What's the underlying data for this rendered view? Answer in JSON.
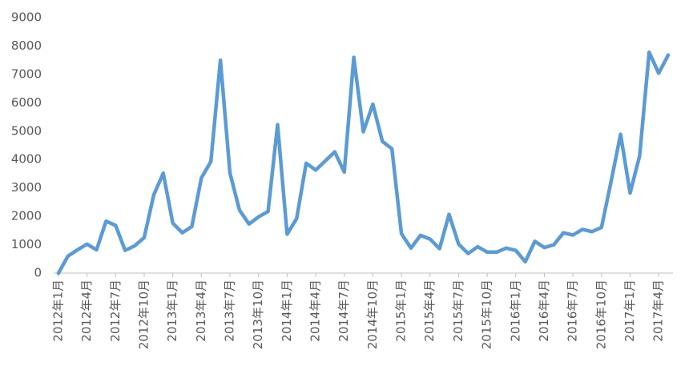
{
  "chart_data": {
    "type": "line",
    "color": "#5b9bd5",
    "categories": [
      "2012年1月",
      null,
      null,
      "2012年4月",
      null,
      null,
      "2012年7月",
      null,
      null,
      "2012年10月",
      null,
      null,
      "2013年1月",
      null,
      null,
      "2013年4月",
      null,
      null,
      "2013年7月",
      null,
      null,
      "2013年10月",
      null,
      null,
      "2014年1月",
      null,
      null,
      "2014年4月",
      null,
      null,
      "2014年7月",
      null,
      null,
      "2014年10月",
      null,
      null,
      "2015年1月",
      null,
      null,
      "2015年4月",
      null,
      null,
      "2015年7月",
      null,
      null,
      "2015年10月",
      null,
      null,
      "2016年1月",
      null,
      null,
      "2016年4月",
      null,
      null,
      "2016年7月",
      null,
      null,
      "2016年10月",
      null,
      null,
      "2017年1月",
      null,
      null,
      "2017年4月",
      null
    ],
    "values": [
      0,
      600,
      820,
      1020,
      820,
      1830,
      1680,
      800,
      960,
      1250,
      2750,
      3520,
      1760,
      1420,
      1640,
      3350,
      3930,
      7500,
      3530,
      2220,
      1730,
      1980,
      2170,
      5230,
      1370,
      1920,
      3870,
      3630,
      3950,
      4270,
      3560,
      7600,
      4980,
      5950,
      4640,
      4380,
      1390,
      880,
      1330,
      1200,
      860,
      2070,
      1020,
      690,
      930,
      740,
      740,
      880,
      800,
      400,
      1120,
      900,
      1000,
      1420,
      1340,
      1540,
      1460,
      1610,
      3220,
      4890,
      2820,
      4130,
      7780,
      7040,
      7680
    ],
    "ylim": [
      0,
      9000
    ],
    "yticks": [
      0,
      1000,
      2000,
      3000,
      4000,
      5000,
      6000,
      7000,
      8000,
      9000
    ],
    "grid": false
  }
}
